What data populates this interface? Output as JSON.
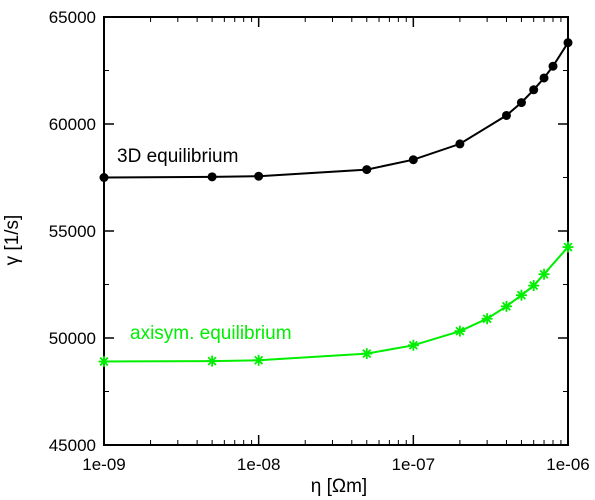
{
  "chart_data": {
    "type": "line",
    "xscale": "log",
    "xlabel": "η   [Ωm]",
    "ylabel": "γ   [1/s]",
    "xlim": [
      1e-09,
      1e-06
    ],
    "ylim": [
      45000,
      65000
    ],
    "xticks": [
      {
        "value": 1e-09,
        "label": "1e-09"
      },
      {
        "value": 1e-08,
        "label": "1e-08"
      },
      {
        "value": 1e-07,
        "label": "1e-07"
      },
      {
        "value": 1e-06,
        "label": "1e-06"
      }
    ],
    "yticks": [
      {
        "value": 45000,
        "label": "45000"
      },
      {
        "value": 50000,
        "label": "50000"
      },
      {
        "value": 55000,
        "label": "55000"
      },
      {
        "value": 60000,
        "label": "60000"
      },
      {
        "value": 65000,
        "label": "65000"
      }
    ],
    "grid": false,
    "series": [
      {
        "name": "3D equilibrium",
        "color": "#000000",
        "marker": "circle",
        "x": [
          1e-09,
          5e-09,
          1e-08,
          5e-08,
          1e-07,
          2e-07,
          4e-07,
          5e-07,
          6e-07,
          7e-07,
          8e-07,
          1e-06
        ],
        "y": [
          57500,
          57530,
          57560,
          57870,
          58330,
          59070,
          60400,
          61000,
          61600,
          62150,
          62700,
          63800
        ]
      },
      {
        "name": "axisym. equilibrium",
        "color": "#00ee00",
        "marker": "asterisk",
        "x": [
          1e-09,
          5e-09,
          1e-08,
          5e-08,
          1e-07,
          2e-07,
          3e-07,
          4e-07,
          5e-07,
          6e-07,
          7e-07,
          1e-06
        ],
        "y": [
          48900,
          48920,
          48960,
          49270,
          49660,
          50320,
          50900,
          51480,
          52000,
          52450,
          52980,
          54250
        ]
      }
    ]
  }
}
